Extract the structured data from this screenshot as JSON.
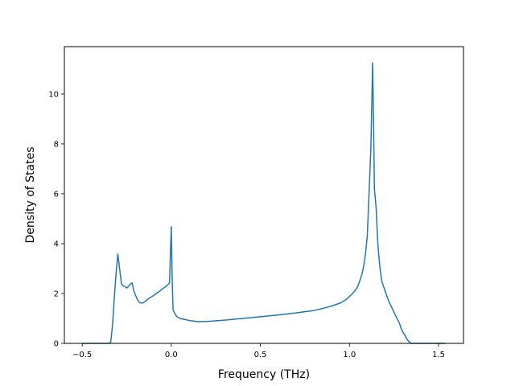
{
  "chart_data": {
    "type": "line",
    "title": "",
    "xlabel": "Frequency (THz)",
    "ylabel": "Density of States",
    "xlim": [
      -0.6,
      1.64
    ],
    "ylim": [
      0,
      11.9
    ],
    "xticks": [
      -0.5,
      0.0,
      0.5,
      1.0,
      1.5
    ],
    "xtick_labels": [
      "−0.5",
      "0.0",
      "0.5",
      "1.0",
      "1.5"
    ],
    "yticks": [
      0,
      2,
      4,
      6,
      8,
      10
    ],
    "ytick_labels": [
      "0",
      "2",
      "4",
      "6",
      "8",
      "10"
    ],
    "grid": false,
    "legend": "none",
    "colors": {
      "line": "#1f77b4"
    },
    "series": [
      {
        "x": [
          -0.5,
          -0.35,
          -0.34,
          -0.33,
          -0.32,
          -0.31,
          -0.3,
          -0.29,
          -0.28,
          -0.27,
          -0.26,
          -0.25,
          -0.24,
          -0.23,
          -0.22,
          -0.21,
          -0.2,
          -0.19,
          -0.18,
          -0.17,
          -0.16,
          -0.15,
          -0.14,
          -0.13,
          -0.12,
          -0.11,
          -0.1,
          -0.09,
          -0.08,
          -0.07,
          -0.06,
          -0.05,
          -0.04,
          -0.03,
          -0.02,
          -0.01,
          0.0,
          0.005,
          0.01,
          0.02,
          0.03,
          0.05,
          0.1,
          0.15,
          0.2,
          0.3,
          0.4,
          0.5,
          0.6,
          0.7,
          0.8,
          0.85,
          0.9,
          0.95,
          0.98,
          1.0,
          1.02,
          1.04,
          1.05,
          1.06,
          1.07,
          1.08,
          1.09,
          1.1,
          1.12,
          1.13,
          1.135,
          1.14,
          1.145,
          1.15,
          1.155,
          1.16,
          1.17,
          1.18,
          1.19,
          1.2,
          1.21,
          1.22,
          1.23,
          1.24,
          1.25,
          1.26,
          1.27,
          1.28,
          1.29,
          1.3,
          1.31,
          1.32,
          1.33,
          1.34,
          1.35,
          1.355,
          1.36,
          1.37,
          1.4,
          1.45,
          1.5,
          1.54
        ],
        "y": [
          0,
          0,
          0.05,
          0.7,
          1.8,
          2.8,
          3.58,
          3.0,
          2.4,
          2.3,
          2.28,
          2.22,
          2.28,
          2.38,
          2.42,
          2.1,
          1.92,
          1.75,
          1.65,
          1.62,
          1.62,
          1.67,
          1.72,
          1.78,
          1.83,
          1.87,
          1.92,
          1.97,
          2.02,
          2.07,
          2.12,
          2.18,
          2.23,
          2.28,
          2.35,
          2.42,
          4.68,
          2.6,
          1.35,
          1.2,
          1.08,
          1.0,
          0.92,
          0.87,
          0.88,
          0.93,
          1.0,
          1.07,
          1.14,
          1.22,
          1.32,
          1.4,
          1.5,
          1.62,
          1.75,
          1.88,
          2.02,
          2.2,
          2.35,
          2.55,
          2.78,
          3.1,
          3.6,
          4.3,
          7.8,
          11.25,
          9.0,
          6.2,
          5.8,
          5.4,
          4.6,
          3.9,
          3.1,
          2.55,
          2.3,
          2.1,
          1.9,
          1.7,
          1.55,
          1.4,
          1.25,
          1.1,
          0.95,
          0.82,
          0.6,
          0.45,
          0.35,
          0.2,
          0.1,
          0.02,
          0,
          0,
          0,
          0,
          0,
          0,
          0,
          0
        ]
      }
    ]
  }
}
